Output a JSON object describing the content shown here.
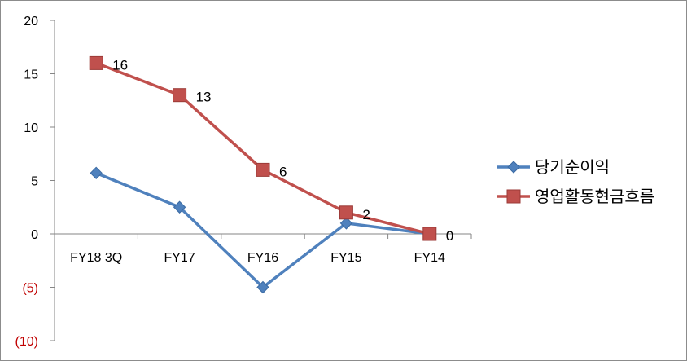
{
  "chart_data": {
    "type": "line",
    "title": "",
    "xlabel": "",
    "ylabel": "",
    "categories": [
      "FY18 3Q",
      "FY17",
      "FY16",
      "FY15",
      "FY14"
    ],
    "ylim": [
      -10,
      20
    ],
    "y_ticks": [
      20,
      15,
      10,
      5,
      0,
      -5,
      -10
    ],
    "y_tick_labels": [
      "20",
      "15",
      "10",
      "5",
      "0",
      "(5)",
      "(10)"
    ],
    "negative_tick_color": "#c00000",
    "grid": false,
    "legend_position": "right",
    "series": [
      {
        "name": "당기순이익",
        "values": [
          5.7,
          2.5,
          -5,
          1,
          0
        ],
        "color": "#4f81bd",
        "marker": "diamond",
        "show_labels": false
      },
      {
        "name": "영업활동현금흐름",
        "values": [
          16,
          13,
          6,
          2,
          0
        ],
        "data_labels": [
          "16",
          "13",
          "6",
          "2",
          "0"
        ],
        "color": "#c0504d",
        "marker": "square",
        "show_labels": true
      }
    ]
  }
}
